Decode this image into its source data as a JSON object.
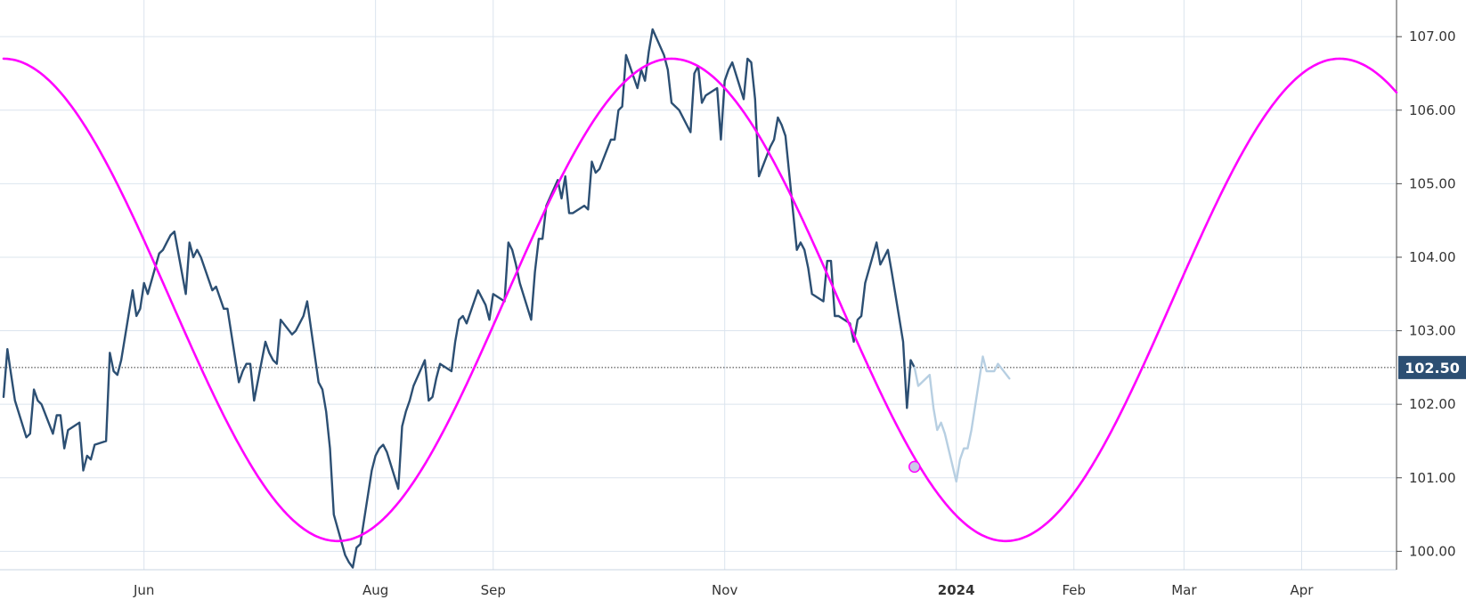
{
  "chart_data": {
    "type": "line",
    "title": "",
    "xlabel": "",
    "ylabel": "",
    "ylim": [
      99.75,
      107.45
    ],
    "x_range": [
      "2023-04-25",
      "2024-04-26"
    ],
    "grid": true,
    "y_axis_position": "right",
    "x_ticks": [
      {
        "label": "Jun",
        "date": "2023-06-01",
        "bold": false
      },
      {
        "label": "Aug",
        "date": "2023-08-01",
        "bold": false
      },
      {
        "label": "Sep",
        "date": "2023-09-01",
        "bold": false
      },
      {
        "label": "Nov",
        "date": "2023-11-01",
        "bold": false
      },
      {
        "label": "2024",
        "date": "2024-01-01",
        "bold": true
      },
      {
        "label": "Feb",
        "date": "2024-02-01",
        "bold": false
      },
      {
        "label": "Mar",
        "date": "2024-03-01",
        "bold": false
      },
      {
        "label": "Apr",
        "date": "2024-04-01",
        "bold": false
      }
    ],
    "y_ticks": [
      "100.00",
      "101.00",
      "102.00",
      "103.00",
      "104.00",
      "105.00",
      "106.00",
      "107.00"
    ],
    "current_value": "102.50",
    "current_value_y": 102.5,
    "series": [
      {
        "role": "price",
        "color": "#2c4f73",
        "points": [
          [
            "2023-04-25",
            102.1
          ],
          [
            "2023-04-26",
            102.75
          ],
          [
            "2023-04-27",
            102.4
          ],
          [
            "2023-04-28",
            102.05
          ],
          [
            "2023-05-01",
            101.55
          ],
          [
            "2023-05-02",
            101.6
          ],
          [
            "2023-05-03",
            102.2
          ],
          [
            "2023-05-04",
            102.05
          ],
          [
            "2023-05-05",
            102.0
          ],
          [
            "2023-05-08",
            101.6
          ],
          [
            "2023-05-09",
            101.85
          ],
          [
            "2023-05-10",
            101.85
          ],
          [
            "2023-05-11",
            101.4
          ],
          [
            "2023-05-12",
            101.65
          ],
          [
            "2023-05-15",
            101.75
          ],
          [
            "2023-05-16",
            101.1
          ],
          [
            "2023-05-17",
            101.3
          ],
          [
            "2023-05-18",
            101.25
          ],
          [
            "2023-05-19",
            101.45
          ],
          [
            "2023-05-22",
            101.5
          ],
          [
            "2023-05-23",
            102.7
          ],
          [
            "2023-05-24",
            102.45
          ],
          [
            "2023-05-25",
            102.4
          ],
          [
            "2023-05-26",
            102.6
          ],
          [
            "2023-05-29",
            103.55
          ],
          [
            "2023-05-30",
            103.2
          ],
          [
            "2023-05-31",
            103.3
          ],
          [
            "2023-06-01",
            103.65
          ],
          [
            "2023-06-02",
            103.5
          ],
          [
            "2023-06-05",
            104.05
          ],
          [
            "2023-06-06",
            104.1
          ],
          [
            "2023-06-07",
            104.2
          ],
          [
            "2023-06-08",
            104.3
          ],
          [
            "2023-06-09",
            104.35
          ],
          [
            "2023-06-12",
            103.5
          ],
          [
            "2023-06-13",
            104.2
          ],
          [
            "2023-06-14",
            104.0
          ],
          [
            "2023-06-15",
            104.1
          ],
          [
            "2023-06-16",
            104.0
          ],
          [
            "2023-06-19",
            103.55
          ],
          [
            "2023-06-20",
            103.6
          ],
          [
            "2023-06-21",
            103.45
          ],
          [
            "2023-06-22",
            103.3
          ],
          [
            "2023-06-23",
            103.3
          ],
          [
            "2023-06-26",
            102.3
          ],
          [
            "2023-06-27",
            102.45
          ],
          [
            "2023-06-28",
            102.55
          ],
          [
            "2023-06-29",
            102.55
          ],
          [
            "2023-06-30",
            102.05
          ],
          [
            "2023-07-03",
            102.85
          ],
          [
            "2023-07-04",
            102.7
          ],
          [
            "2023-07-05",
            102.6
          ],
          [
            "2023-07-06",
            102.55
          ],
          [
            "2023-07-07",
            103.15
          ],
          [
            "2023-07-10",
            102.95
          ],
          [
            "2023-07-11",
            103.0
          ],
          [
            "2023-07-12",
            103.1
          ],
          [
            "2023-07-13",
            103.2
          ],
          [
            "2023-07-14",
            103.4
          ],
          [
            "2023-07-17",
            102.3
          ],
          [
            "2023-07-18",
            102.2
          ],
          [
            "2023-07-19",
            101.9
          ],
          [
            "2023-07-20",
            101.4
          ],
          [
            "2023-07-21",
            100.5
          ],
          [
            "2023-07-24",
            99.95
          ],
          [
            "2023-07-25",
            99.85
          ],
          [
            "2023-07-26",
            99.78
          ],
          [
            "2023-07-27",
            100.05
          ],
          [
            "2023-07-28",
            100.1
          ],
          [
            "2023-07-31",
            101.1
          ],
          [
            "2023-08-01",
            101.3
          ],
          [
            "2023-08-02",
            101.4
          ],
          [
            "2023-08-03",
            101.45
          ],
          [
            "2023-08-04",
            101.35
          ],
          [
            "2023-08-07",
            100.85
          ],
          [
            "2023-08-08",
            101.7
          ],
          [
            "2023-08-09",
            101.9
          ],
          [
            "2023-08-10",
            102.05
          ],
          [
            "2023-08-11",
            102.25
          ],
          [
            "2023-08-14",
            102.6
          ],
          [
            "2023-08-15",
            102.05
          ],
          [
            "2023-08-16",
            102.1
          ],
          [
            "2023-08-17",
            102.35
          ],
          [
            "2023-08-18",
            102.55
          ],
          [
            "2023-08-21",
            102.45
          ],
          [
            "2023-08-22",
            102.85
          ],
          [
            "2023-08-23",
            103.15
          ],
          [
            "2023-08-24",
            103.2
          ],
          [
            "2023-08-25",
            103.1
          ],
          [
            "2023-08-28",
            103.55
          ],
          [
            "2023-08-29",
            103.45
          ],
          [
            "2023-08-30",
            103.35
          ],
          [
            "2023-08-31",
            103.15
          ],
          [
            "2023-09-01",
            103.5
          ],
          [
            "2023-09-04",
            103.4
          ],
          [
            "2023-09-05",
            104.2
          ],
          [
            "2023-09-06",
            104.1
          ],
          [
            "2023-09-07",
            103.9
          ],
          [
            "2023-09-08",
            103.65
          ],
          [
            "2023-09-11",
            103.15
          ],
          [
            "2023-09-12",
            103.8
          ],
          [
            "2023-09-13",
            104.25
          ],
          [
            "2023-09-14",
            104.25
          ],
          [
            "2023-09-15",
            104.7
          ],
          [
            "2023-09-18",
            105.05
          ],
          [
            "2023-09-19",
            104.8
          ],
          [
            "2023-09-20",
            105.1
          ],
          [
            "2023-09-21",
            104.6
          ],
          [
            "2023-09-22",
            104.6
          ],
          [
            "2023-09-25",
            104.7
          ],
          [
            "2023-09-26",
            104.65
          ],
          [
            "2023-09-27",
            105.3
          ],
          [
            "2023-09-28",
            105.15
          ],
          [
            "2023-09-29",
            105.2
          ],
          [
            "2023-10-02",
            105.6
          ],
          [
            "2023-10-03",
            105.6
          ],
          [
            "2023-10-04",
            106.0
          ],
          [
            "2023-10-05",
            106.05
          ],
          [
            "2023-10-06",
            106.75
          ],
          [
            "2023-10-09",
            106.3
          ],
          [
            "2023-10-10",
            106.55
          ],
          [
            "2023-10-11",
            106.4
          ],
          [
            "2023-10-12",
            106.8
          ],
          [
            "2023-10-13",
            107.1
          ],
          [
            "2023-10-16",
            106.75
          ],
          [
            "2023-10-17",
            106.55
          ],
          [
            "2023-10-18",
            106.1
          ],
          [
            "2023-10-19",
            106.05
          ],
          [
            "2023-10-20",
            106.0
          ],
          [
            "2023-10-23",
            105.7
          ],
          [
            "2023-10-24",
            106.5
          ],
          [
            "2023-10-25",
            106.6
          ],
          [
            "2023-10-26",
            106.1
          ],
          [
            "2023-10-27",
            106.2
          ],
          [
            "2023-10-30",
            106.3
          ],
          [
            "2023-10-31",
            105.6
          ],
          [
            "2023-11-01",
            106.4
          ],
          [
            "2023-11-02",
            106.55
          ],
          [
            "2023-11-03",
            106.65
          ],
          [
            "2023-11-06",
            106.15
          ],
          [
            "2023-11-07",
            106.7
          ],
          [
            "2023-11-08",
            106.65
          ],
          [
            "2023-11-09",
            106.15
          ],
          [
            "2023-11-10",
            105.1
          ],
          [
            "2023-11-13",
            105.5
          ],
          [
            "2023-11-14",
            105.6
          ],
          [
            "2023-11-15",
            105.9
          ],
          [
            "2023-11-16",
            105.8
          ],
          [
            "2023-11-17",
            105.65
          ],
          [
            "2023-11-20",
            104.1
          ],
          [
            "2023-11-21",
            104.2
          ],
          [
            "2023-11-22",
            104.1
          ],
          [
            "2023-11-23",
            103.85
          ],
          [
            "2023-11-24",
            103.5
          ],
          [
            "2023-11-27",
            103.4
          ],
          [
            "2023-11-28",
            103.95
          ],
          [
            "2023-11-29",
            103.95
          ],
          [
            "2023-11-30",
            103.2
          ],
          [
            "2023-12-01",
            103.2
          ],
          [
            "2023-12-04",
            103.1
          ],
          [
            "2023-12-05",
            102.85
          ],
          [
            "2023-12-06",
            103.15
          ],
          [
            "2023-12-07",
            103.2
          ],
          [
            "2023-12-08",
            103.65
          ],
          [
            "2023-12-11",
            104.2
          ],
          [
            "2023-12-12",
            103.9
          ],
          [
            "2023-12-13",
            104.0
          ],
          [
            "2023-12-14",
            104.1
          ],
          [
            "2023-12-15",
            103.8
          ],
          [
            "2023-12-18",
            102.85
          ],
          [
            "2023-12-19",
            101.95
          ],
          [
            "2023-12-20",
            102.6
          ],
          [
            "2023-12-21",
            102.5
          ]
        ]
      },
      {
        "role": "projection",
        "color": "#b7cfe2",
        "points": [
          [
            "2023-12-21",
            102.5
          ],
          [
            "2023-12-22",
            102.25
          ],
          [
            "2023-12-25",
            102.4
          ],
          [
            "2023-12-26",
            101.95
          ],
          [
            "2023-12-27",
            101.65
          ],
          [
            "2023-12-28",
            101.75
          ],
          [
            "2023-12-29",
            101.6
          ],
          [
            "2024-01-01",
            100.95
          ],
          [
            "2024-01-02",
            101.25
          ],
          [
            "2024-01-03",
            101.4
          ],
          [
            "2024-01-04",
            101.4
          ],
          [
            "2024-01-05",
            101.65
          ],
          [
            "2024-01-08",
            102.65
          ],
          [
            "2024-01-09",
            102.45
          ],
          [
            "2024-01-10",
            102.45
          ],
          [
            "2024-01-11",
            102.45
          ],
          [
            "2024-01-12",
            102.55
          ],
          [
            "2024-01-15",
            102.35
          ]
        ]
      },
      {
        "role": "cycle",
        "color": "#ff00ff",
        "type": "sine",
        "peak_date": "2023-10-18",
        "trough_date": "2023-07-20",
        "period_days": 176,
        "mid": 103.42,
        "amplitude": 3.28,
        "points": [
          [
            "2023-04-25",
            106.7
          ],
          [
            "2023-05-20",
            104.94
          ],
          [
            "2023-06-14",
            101.84
          ],
          [
            "2023-07-20",
            100.14
          ],
          [
            "2023-08-15",
            101.71
          ],
          [
            "2023-09-10",
            104.98
          ],
          [
            "2023-10-18",
            106.7
          ],
          [
            "2023-11-12",
            105.02
          ],
          [
            "2023-12-08",
            101.74
          ],
          [
            "2024-01-13",
            100.14
          ],
          [
            "2024-02-08",
            101.71
          ],
          [
            "2024-03-05",
            104.98
          ],
          [
            "2024-04-12",
            106.7
          ],
          [
            "2024-04-26",
            105.89
          ]
        ]
      }
    ],
    "marker": {
      "date": "2023-12-21",
      "y": 101.15,
      "fill": "#c9c9e8",
      "stroke": "#ff00ff"
    }
  }
}
